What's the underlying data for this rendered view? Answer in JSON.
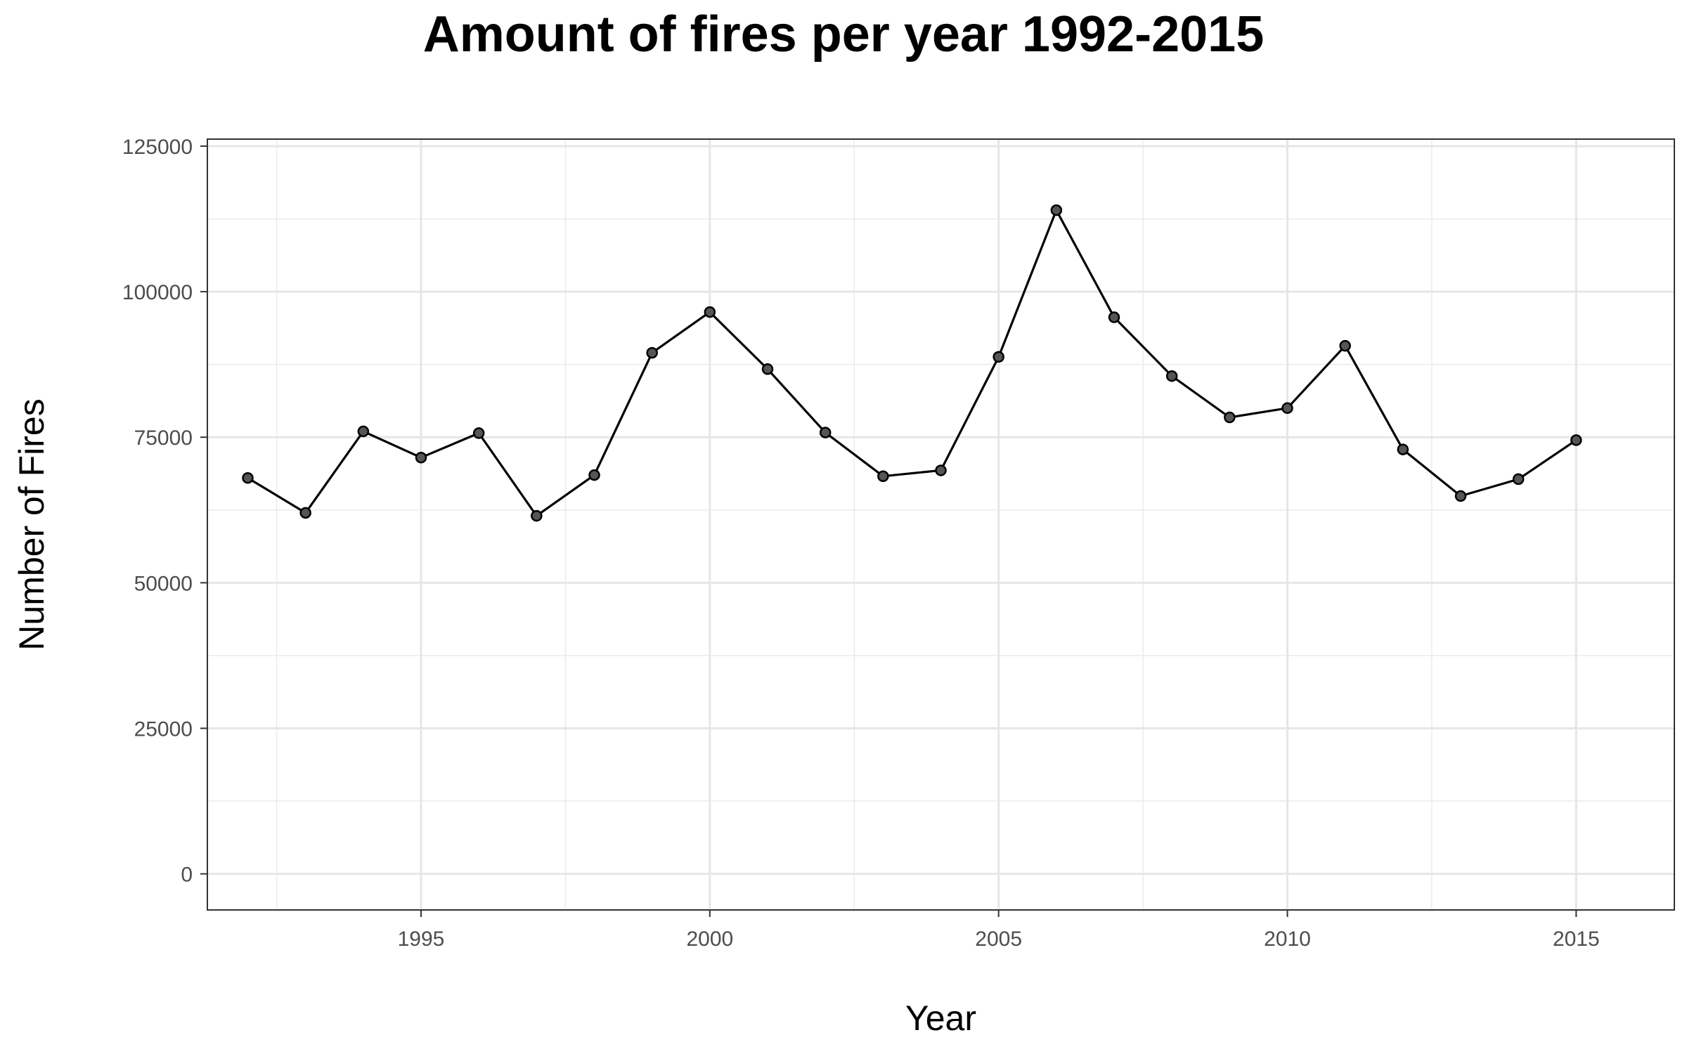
{
  "chart_data": {
    "type": "line",
    "title": "Amount of fires per year 1992-2015",
    "xlabel": "Year",
    "ylabel": "Number of Fires",
    "xlim": [
      1991.3,
      2016.7
    ],
    "ylim": [
      -6200,
      126200
    ],
    "x_ticks": [
      1995,
      2000,
      2005,
      2010,
      2015
    ],
    "y_ticks": [
      0,
      25000,
      50000,
      75000,
      100000,
      125000
    ],
    "grid": true,
    "legend": "none",
    "line_color": "#000000",
    "point_color": "#555555",
    "x": [
      1992,
      1993,
      1994,
      1995,
      1996,
      1997,
      1998,
      1999,
      2000,
      2001,
      2002,
      2003,
      2004,
      2005,
      2006,
      2007,
      2008,
      2009,
      2010,
      2011,
      2012,
      2013,
      2014,
      2015
    ],
    "y": [
      68000,
      62000,
      76000,
      71500,
      75700,
      61500,
      68500,
      89500,
      96500,
      86700,
      75800,
      68300,
      69300,
      88800,
      114000,
      95600,
      85500,
      78400,
      80000,
      90700,
      72900,
      64900,
      67800,
      74500
    ]
  }
}
